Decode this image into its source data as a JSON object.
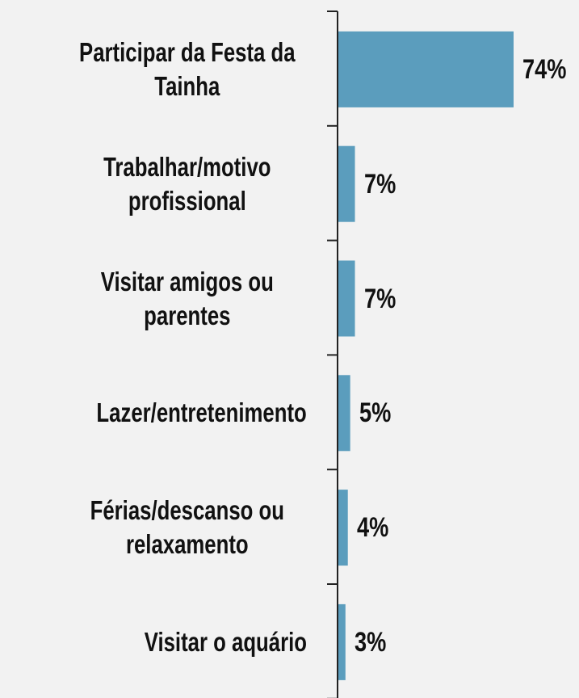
{
  "chart_data": {
    "type": "bar",
    "orientation": "horizontal",
    "categories": [
      "Participar da Festa da Tainha",
      "Trabalhar/motivo profissional",
      "Visitar amigos ou parentes",
      "Lazer/entretenimento",
      "Férias/descanso ou relaxamento",
      "Visitar o aquário"
    ],
    "values": [
      74,
      7,
      7,
      5,
      4,
      3
    ],
    "value_labels": [
      "74%",
      "7%",
      "7%",
      "5%",
      "4%",
      "3%"
    ],
    "color": "#5b9dbd"
  }
}
